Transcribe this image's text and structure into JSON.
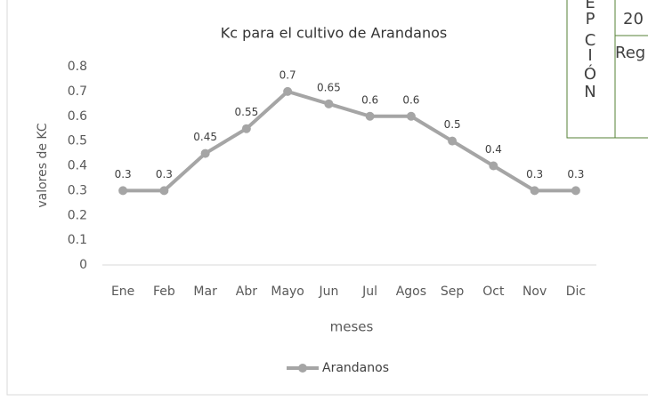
{
  "chart_data": {
    "type": "line",
    "title": "Kc para el cultivo de Arandanos",
    "x_label": "meses",
    "y_label": "valores de KC",
    "categories": [
      "Ene",
      "Feb",
      "Mar",
      "Abr",
      "Mayo",
      "Jun",
      "Jul",
      "Agos",
      "Sep",
      "Oct",
      "Nov",
      "Dic"
    ],
    "series": [
      {
        "name": "Arandanos",
        "color": "#a5a5a5",
        "values": [
          0.3,
          0.3,
          0.45,
          0.55,
          0.7,
          0.65,
          0.6,
          0.6,
          0.5,
          0.4,
          0.3,
          0.3
        ]
      }
    ],
    "ylim": [
      0,
      0.8
    ],
    "yticks": [
      0,
      0.1,
      0.2,
      0.3,
      0.4,
      0.5,
      0.6,
      0.7,
      0.8
    ],
    "grid": false,
    "legend": "bottom"
  },
  "overlay_table": {
    "letters": [
      "E",
      "P",
      "C",
      "I",
      "Ó",
      "N"
    ],
    "cells": [
      "20",
      "Reg"
    ]
  }
}
